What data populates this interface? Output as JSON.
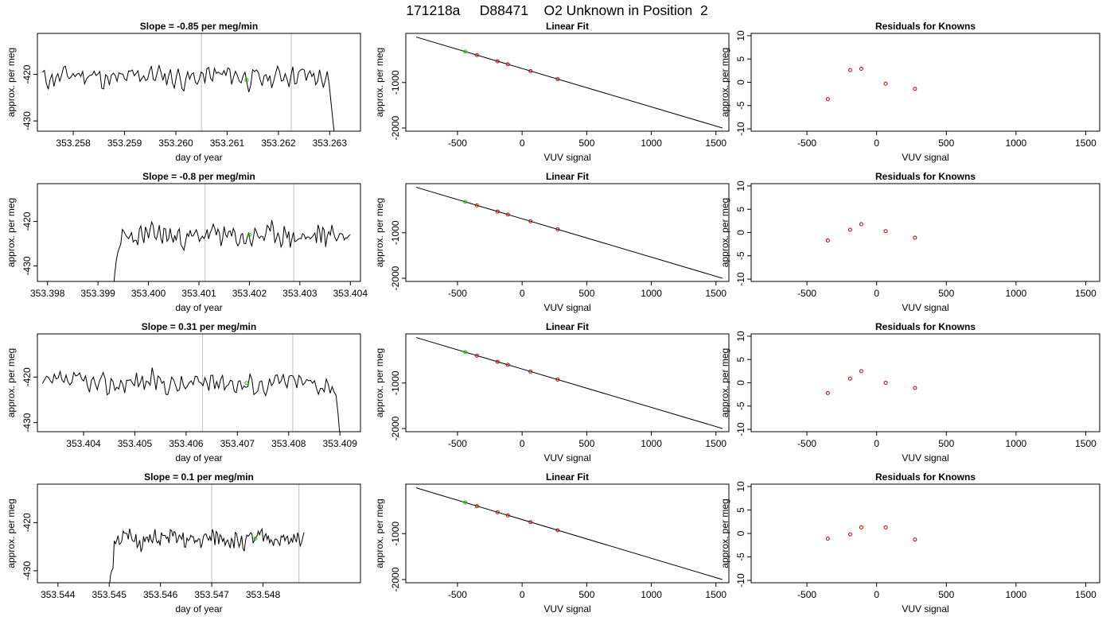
{
  "page": {
    "title": "171218a     D88471    O2 Unknown in Position  2"
  },
  "chart_data": [
    {
      "panel": "row1-trace",
      "type": "line",
      "title": "Slope =  -0.85  per meg/min",
      "xlabel": "day of year",
      "ylabel": "approx. per meg",
      "xlim": [
        353.2573,
        353.2636
      ],
      "ylim": [
        -432.2,
        -411.2
      ],
      "xticks": [
        353.258,
        353.259,
        353.26,
        353.261,
        353.262,
        353.263
      ],
      "xtick_labels": [
        "353.258",
        "353.259",
        "353.260",
        "353.261",
        "353.262",
        "353.263"
      ],
      "yticks": [
        -420,
        -430
      ],
      "ytick_labels": [
        "-420",
        "-430"
      ],
      "trace_start": 353.2574,
      "trace_end": 353.2631,
      "trace_lead": [],
      "trace_tail": [
        -422,
        -426,
        -430,
        -433.5
      ],
      "trace_seed": 11,
      "trace_center": -420.5,
      "trace_amp": 2.4,
      "vlines": [
        353.2605,
        353.26225
      ],
      "marker": {
        "x": 353.26138,
        "y": -421.2
      },
      "color_trace": "#000000",
      "color_vline": "#c8c8c8",
      "color_marker": "#00cc00"
    },
    {
      "panel": "row1-fit",
      "type": "line",
      "title": "Linear Fit",
      "xlabel": "VUV signal",
      "ylabel": "approx. per meg",
      "xlim": [
        -900,
        1600
      ],
      "ylim": [
        -2070,
        80
      ],
      "xticks": [
        -500,
        0,
        500,
        1000,
        1500
      ],
      "xtick_labels": [
        "-500",
        "0",
        "500",
        "1000",
        "1500"
      ],
      "yticks": [
        -1000,
        -2000
      ],
      "ytick_labels": [
        "-1000",
        "-2000"
      ],
      "line": {
        "x": [
          -820,
          1550
        ],
        "y": [
          0,
          -2000
        ]
      },
      "points": [
        {
          "x": -440,
          "y": -320,
          "color": "#00cc00"
        },
        {
          "x": -350,
          "y": -398,
          "color": "#cc0000"
        },
        {
          "x": -190,
          "y": -533,
          "color": "#cc0000"
        },
        {
          "x": -110,
          "y": -600,
          "color": "#cc0000"
        },
        {
          "x": 65,
          "y": -748,
          "color": "#cc0000"
        },
        {
          "x": 275,
          "y": -925,
          "color": "#cc0000"
        }
      ],
      "color_line": "#000000"
    },
    {
      "panel": "row1-resid",
      "type": "scatter",
      "title": "Residuals for Knowns",
      "xlabel": "VUV signal",
      "ylabel": "approx. per meg",
      "xlim": [
        -900,
        1600
      ],
      "ylim": [
        -10.5,
        10.5
      ],
      "xticks": [
        -500,
        0,
        500,
        1000,
        1500
      ],
      "xtick_labels": [
        "-500",
        "0",
        "500",
        "1000",
        "1500"
      ],
      "yticks": [
        10,
        5,
        0,
        -5,
        -10
      ],
      "ytick_labels": [
        "10",
        "5",
        "0",
        "-5",
        "-10"
      ],
      "points": [
        {
          "x": -350,
          "y": -3.6
        },
        {
          "x": -190,
          "y": 2.6
        },
        {
          "x": -110,
          "y": 2.9
        },
        {
          "x": 65,
          "y": -0.3
        },
        {
          "x": 275,
          "y": -1.4
        }
      ],
      "color_points": "#cc0000"
    },
    {
      "panel": "row2-trace",
      "type": "line",
      "title": "Slope =  -0.8  per meg/min",
      "xlabel": "day of year",
      "ylabel": "approx. per meg",
      "xlim": [
        353.3978,
        353.4042
      ],
      "ylim": [
        -433.5,
        -411.5
      ],
      "xticks": [
        353.398,
        353.399,
        353.4,
        353.401,
        353.402,
        353.403,
        353.404
      ],
      "xtick_labels": [
        "353.398",
        "353.399",
        "353.400",
        "353.401",
        "353.402",
        "353.403",
        "353.404"
      ],
      "yticks": [
        -420,
        -430
      ],
      "ytick_labels": [
        "-420",
        "-430"
      ],
      "trace_start": 353.3993,
      "trace_end": 353.404,
      "trace_lead": [
        -436,
        -432,
        -429,
        -427,
        -426
      ],
      "trace_tail": [],
      "trace_seed": 23,
      "trace_center": -423.3,
      "trace_amp": 2.5,
      "vlines": [
        353.40112,
        353.40288
      ],
      "marker": {
        "x": 353.402,
        "y": -423.0
      },
      "color_trace": "#000000",
      "color_vline": "#c8c8c8",
      "color_marker": "#00cc00"
    },
    {
      "panel": "row2-fit",
      "type": "line",
      "title": "Linear Fit",
      "xlabel": "VUV signal",
      "ylabel": "approx. per meg",
      "xlim": [
        -900,
        1600
      ],
      "ylim": [
        -2070,
        80
      ],
      "xticks": [
        -500,
        0,
        500,
        1000,
        1500
      ],
      "xtick_labels": [
        "-500",
        "0",
        "500",
        "1000",
        "1500"
      ],
      "yticks": [
        -1000,
        -2000
      ],
      "ytick_labels": [
        "-1000",
        "-2000"
      ],
      "line": {
        "x": [
          -820,
          1550
        ],
        "y": [
          0,
          -2000
        ]
      },
      "points": [
        {
          "x": -440,
          "y": -320,
          "color": "#00cc00"
        },
        {
          "x": -350,
          "y": -398,
          "color": "#cc0000"
        },
        {
          "x": -190,
          "y": -533,
          "color": "#cc0000"
        },
        {
          "x": -110,
          "y": -600,
          "color": "#cc0000"
        },
        {
          "x": 65,
          "y": -748,
          "color": "#cc0000"
        },
        {
          "x": 275,
          "y": -925,
          "color": "#cc0000"
        }
      ],
      "color_line": "#000000"
    },
    {
      "panel": "row2-resid",
      "type": "scatter",
      "title": "Residuals for Knowns",
      "xlabel": "VUV signal",
      "ylabel": "approx. per meg",
      "xlim": [
        -900,
        1600
      ],
      "ylim": [
        -10.5,
        10.5
      ],
      "xticks": [
        -500,
        0,
        500,
        1000,
        1500
      ],
      "xtick_labels": [
        "-500",
        "0",
        "500",
        "1000",
        "1500"
      ],
      "yticks": [
        10,
        5,
        0,
        -5,
        -10
      ],
      "ytick_labels": [
        "10",
        "5",
        "0",
        "-5",
        "-10"
      ],
      "points": [
        {
          "x": -350,
          "y": -1.7
        },
        {
          "x": -190,
          "y": 0.6
        },
        {
          "x": -110,
          "y": 1.8
        },
        {
          "x": 65,
          "y": 0.3
        },
        {
          "x": 275,
          "y": -1.1
        }
      ],
      "color_points": "#cc0000"
    },
    {
      "panel": "row3-trace",
      "type": "line",
      "title": "Slope =  0.31  per meg/min",
      "xlabel": "day of year",
      "ylabel": "approx. per meg",
      "xlim": [
        353.4031,
        353.4094
      ],
      "ylim": [
        -432.0,
        -410.5
      ],
      "xticks": [
        353.404,
        353.405,
        353.406,
        353.407,
        353.408,
        353.409
      ],
      "xtick_labels": [
        "353.404",
        "353.405",
        "353.406",
        "353.407",
        "353.408",
        "353.409"
      ],
      "yticks": [
        -420,
        -430
      ],
      "ytick_labels": [
        "-420",
        "-430"
      ],
      "trace_start": 353.4032,
      "trace_end": 353.409,
      "trace_lead": [],
      "trace_tail": [
        -424,
        -428,
        -433
      ],
      "trace_seed": 37,
      "trace_center": -421.3,
      "trace_amp": 2.4,
      "vlines": [
        353.40632,
        353.40808
      ],
      "marker": {
        "x": 353.40718,
        "y": -421.3
      },
      "color_trace": "#000000",
      "color_vline": "#c8c8c8",
      "color_marker": "#00cc00"
    },
    {
      "panel": "row3-fit",
      "type": "line",
      "title": "Linear Fit",
      "xlabel": "VUV signal",
      "ylabel": "approx. per meg",
      "xlim": [
        -900,
        1600
      ],
      "ylim": [
        -2070,
        80
      ],
      "xticks": [
        -500,
        0,
        500,
        1000,
        1500
      ],
      "xtick_labels": [
        "-500",
        "0",
        "500",
        "1000",
        "1500"
      ],
      "yticks": [
        -1000,
        -2000
      ],
      "ytick_labels": [
        "-1000",
        "-2000"
      ],
      "line": {
        "x": [
          -820,
          1550
        ],
        "y": [
          0,
          -2000
        ]
      },
      "points": [
        {
          "x": -440,
          "y": -320,
          "color": "#00cc00"
        },
        {
          "x": -350,
          "y": -398,
          "color": "#cc0000"
        },
        {
          "x": -190,
          "y": -533,
          "color": "#cc0000"
        },
        {
          "x": -110,
          "y": -600,
          "color": "#cc0000"
        },
        {
          "x": 65,
          "y": -748,
          "color": "#cc0000"
        },
        {
          "x": 275,
          "y": -925,
          "color": "#cc0000"
        }
      ],
      "color_line": "#000000"
    },
    {
      "panel": "row3-resid",
      "type": "scatter",
      "title": "Residuals for Knowns",
      "xlabel": "VUV signal",
      "ylabel": "approx. per meg",
      "xlim": [
        -900,
        1600
      ],
      "ylim": [
        -10.5,
        10.5
      ],
      "xticks": [
        -500,
        0,
        500,
        1000,
        1500
      ],
      "xtick_labels": [
        "-500",
        "0",
        "500",
        "1000",
        "1500"
      ],
      "yticks": [
        10,
        5,
        0,
        -5,
        -10
      ],
      "ytick_labels": [
        "10",
        "5",
        "0",
        "-5",
        "-10"
      ],
      "points": [
        {
          "x": -350,
          "y": -2.2
        },
        {
          "x": -190,
          "y": 0.9
        },
        {
          "x": -110,
          "y": 2.5
        },
        {
          "x": 65,
          "y": 0.0
        },
        {
          "x": 275,
          "y": -1.1
        }
      ],
      "color_points": "#cc0000"
    },
    {
      "panel": "row4-trace",
      "type": "line",
      "title": "Slope =  0.1  per meg/min",
      "xlabel": "day of year",
      "ylabel": "approx. per meg",
      "xlim": [
        353.5436,
        353.5499
      ],
      "ylim": [
        -432.5,
        -412.0
      ],
      "xticks": [
        353.544,
        353.545,
        353.546,
        353.547,
        353.548
      ],
      "xtick_labels": [
        "353.544",
        "353.545",
        "353.546",
        "353.547",
        "353.548"
      ],
      "yticks": [
        -420,
        -430
      ],
      "ytick_labels": [
        "-420",
        "-430"
      ],
      "trace_start": 353.545,
      "trace_end": 353.5488,
      "trace_lead": [
        -434,
        -431,
        -430,
        -429.5
      ],
      "trace_tail": [],
      "trace_seed": 51,
      "trace_center": -423.5,
      "trace_amp": 2.0,
      "vlines": [
        353.547,
        353.5487
      ],
      "marker": {
        "x": 353.54785,
        "y": -423.3
      },
      "color_trace": "#000000",
      "color_vline": "#c8c8c8",
      "color_marker": "#00cc00"
    },
    {
      "panel": "row4-fit",
      "type": "line",
      "title": "Linear Fit",
      "xlabel": "VUV signal",
      "ylabel": "approx. per meg",
      "xlim": [
        -900,
        1600
      ],
      "ylim": [
        -2070,
        80
      ],
      "xticks": [
        -500,
        0,
        500,
        1000,
        1500
      ],
      "xtick_labels": [
        "-500",
        "0",
        "500",
        "1000",
        "1500"
      ],
      "yticks": [
        -1000,
        -2000
      ],
      "ytick_labels": [
        "-1000",
        "-2000"
      ],
      "line": {
        "x": [
          -820,
          1550
        ],
        "y": [
          0,
          -2000
        ]
      },
      "points": [
        {
          "x": -440,
          "y": -320,
          "color": "#00cc00"
        },
        {
          "x": -350,
          "y": -398,
          "color": "#cc0000"
        },
        {
          "x": -190,
          "y": -533,
          "color": "#cc0000"
        },
        {
          "x": -110,
          "y": -600,
          "color": "#cc0000"
        },
        {
          "x": 65,
          "y": -748,
          "color": "#cc0000"
        },
        {
          "x": 275,
          "y": -925,
          "color": "#cc0000"
        }
      ],
      "color_line": "#000000"
    },
    {
      "panel": "row4-resid",
      "type": "scatter",
      "title": "Residuals for Knowns",
      "xlabel": "VUV signal",
      "ylabel": "approx. per meg",
      "xlim": [
        -900,
        1600
      ],
      "ylim": [
        -10.5,
        10.5
      ],
      "xticks": [
        -500,
        0,
        500,
        1000,
        1500
      ],
      "xtick_labels": [
        "-500",
        "0",
        "500",
        "1000",
        "1500"
      ],
      "yticks": [
        10,
        5,
        0,
        -5,
        -10
      ],
      "ytick_labels": [
        "10",
        "5",
        "0",
        "-5",
        "-10"
      ],
      "points": [
        {
          "x": -350,
          "y": -1.1
        },
        {
          "x": -190,
          "y": -0.2
        },
        {
          "x": -110,
          "y": 1.3
        },
        {
          "x": 65,
          "y": 1.3
        },
        {
          "x": 275,
          "y": -1.3
        }
      ],
      "color_points": "#cc0000"
    }
  ]
}
